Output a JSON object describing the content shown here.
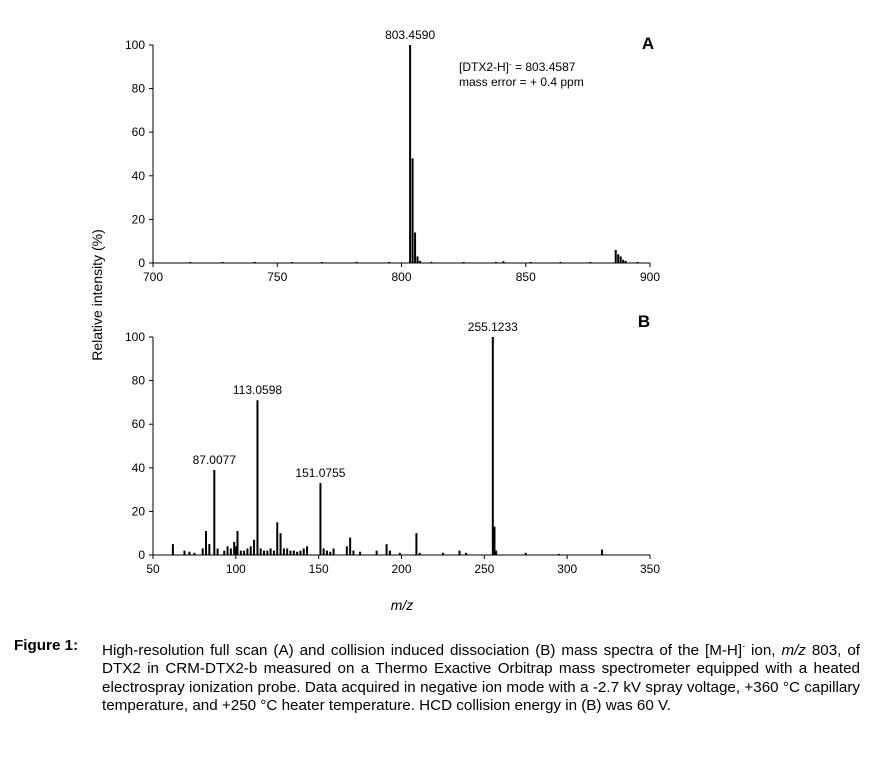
{
  "chart_data": [
    {
      "type": "bar",
      "panel_label": "A",
      "xlim": [
        700,
        900
      ],
      "ylim": [
        0,
        100
      ],
      "xticks": [
        700,
        750,
        800,
        850,
        900
      ],
      "yticks": [
        0,
        20,
        40,
        60,
        80,
        100
      ],
      "grid": false,
      "peaks": [
        {
          "mz": 803.459,
          "intensity": 100
        },
        {
          "mz": 804.46,
          "intensity": 48
        },
        {
          "mz": 805.46,
          "intensity": 14
        },
        {
          "mz": 806.46,
          "intensity": 3
        },
        {
          "mz": 807.5,
          "intensity": 1
        },
        {
          "mz": 886.2,
          "intensity": 6
        },
        {
          "mz": 887.2,
          "intensity": 4
        },
        {
          "mz": 888.2,
          "intensity": 3
        },
        {
          "mz": 889.2,
          "intensity": 1.5
        },
        {
          "mz": 890.2,
          "intensity": 1
        },
        {
          "mz": 715,
          "intensity": 0.4
        },
        {
          "mz": 728,
          "intensity": 0.3
        },
        {
          "mz": 741,
          "intensity": 0.4
        },
        {
          "mz": 756,
          "intensity": 0.3
        },
        {
          "mz": 768,
          "intensity": 0.4
        },
        {
          "mz": 782,
          "intensity": 0.5
        },
        {
          "mz": 795,
          "intensity": 0.4
        },
        {
          "mz": 812,
          "intensity": 0.5
        },
        {
          "mz": 825,
          "intensity": 0.4
        },
        {
          "mz": 838,
          "intensity": 0.5
        },
        {
          "mz": 841,
          "intensity": 0.8
        },
        {
          "mz": 852,
          "intensity": 0.4
        },
        {
          "mz": 864,
          "intensity": 0.5
        },
        {
          "mz": 876,
          "intensity": 0.4
        },
        {
          "mz": 895,
          "intensity": 0.4
        }
      ],
      "peak_labels": [
        {
          "mz": 803.459,
          "intensity": 100,
          "text": "803.4590"
        }
      ],
      "annotation": {
        "line1_main": "[DTX2-H]",
        "line1_sup": "-",
        "line1_tail": " = 803.4587",
        "line2": "mass error = + 0.4 ppm"
      }
    },
    {
      "type": "bar",
      "panel_label": "B",
      "xlim": [
        50,
        350
      ],
      "ylim": [
        0,
        100
      ],
      "xticks": [
        50,
        100,
        150,
        200,
        250,
        300,
        350
      ],
      "yticks": [
        0,
        20,
        40,
        60,
        80,
        100
      ],
      "grid": false,
      "peaks": [
        {
          "mz": 62,
          "intensity": 5
        },
        {
          "mz": 69,
          "intensity": 2
        },
        {
          "mz": 72,
          "intensity": 1.5
        },
        {
          "mz": 75,
          "intensity": 1
        },
        {
          "mz": 80,
          "intensity": 3
        },
        {
          "mz": 82,
          "intensity": 11
        },
        {
          "mz": 84,
          "intensity": 5
        },
        {
          "mz": 87.0077,
          "intensity": 39
        },
        {
          "mz": 89,
          "intensity": 3
        },
        {
          "mz": 93,
          "intensity": 2
        },
        {
          "mz": 95,
          "intensity": 4
        },
        {
          "mz": 97,
          "intensity": 3
        },
        {
          "mz": 99,
          "intensity": 6
        },
        {
          "mz": 100,
          "intensity": 4
        },
        {
          "mz": 101,
          "intensity": 11
        },
        {
          "mz": 103,
          "intensity": 2
        },
        {
          "mz": 105,
          "intensity": 2
        },
        {
          "mz": 107,
          "intensity": 3
        },
        {
          "mz": 109,
          "intensity": 4
        },
        {
          "mz": 111,
          "intensity": 7
        },
        {
          "mz": 113.0598,
          "intensity": 71
        },
        {
          "mz": 115,
          "intensity": 3
        },
        {
          "mz": 117,
          "intensity": 2
        },
        {
          "mz": 119,
          "intensity": 2
        },
        {
          "mz": 121,
          "intensity": 3
        },
        {
          "mz": 123,
          "intensity": 2
        },
        {
          "mz": 125,
          "intensity": 15
        },
        {
          "mz": 127,
          "intensity": 10
        },
        {
          "mz": 129,
          "intensity": 3
        },
        {
          "mz": 131,
          "intensity": 3
        },
        {
          "mz": 133,
          "intensity": 2
        },
        {
          "mz": 135,
          "intensity": 2
        },
        {
          "mz": 137,
          "intensity": 1.5
        },
        {
          "mz": 139,
          "intensity": 2
        },
        {
          "mz": 141,
          "intensity": 3
        },
        {
          "mz": 143,
          "intensity": 4
        },
        {
          "mz": 151.0755,
          "intensity": 33
        },
        {
          "mz": 153,
          "intensity": 3
        },
        {
          "mz": 155,
          "intensity": 2
        },
        {
          "mz": 157,
          "intensity": 1.5
        },
        {
          "mz": 159,
          "intensity": 3
        },
        {
          "mz": 167,
          "intensity": 4
        },
        {
          "mz": 169,
          "intensity": 8
        },
        {
          "mz": 171,
          "intensity": 2
        },
        {
          "mz": 175,
          "intensity": 1.5
        },
        {
          "mz": 185,
          "intensity": 2
        },
        {
          "mz": 191,
          "intensity": 5
        },
        {
          "mz": 193,
          "intensity": 2
        },
        {
          "mz": 199,
          "intensity": 1
        },
        {
          "mz": 209,
          "intensity": 10
        },
        {
          "mz": 211,
          "intensity": 1
        },
        {
          "mz": 225,
          "intensity": 1
        },
        {
          "mz": 235,
          "intensity": 2
        },
        {
          "mz": 239,
          "intensity": 1
        },
        {
          "mz": 255.1233,
          "intensity": 100
        },
        {
          "mz": 256.12,
          "intensity": 13
        },
        {
          "mz": 257.12,
          "intensity": 2
        },
        {
          "mz": 275,
          "intensity": 1
        },
        {
          "mz": 295,
          "intensity": 0.5
        },
        {
          "mz": 321,
          "intensity": 2.5
        }
      ],
      "peak_labels": [
        {
          "mz": 87.0077,
          "intensity": 39,
          "text": "87.0077"
        },
        {
          "mz": 113.0598,
          "intensity": 71,
          "text": "113.0598"
        },
        {
          "mz": 151.0755,
          "intensity": 33,
          "text": "151.0755"
        },
        {
          "mz": 255.1233,
          "intensity": 100,
          "text": "255.1233"
        }
      ]
    }
  ],
  "ylabel": "Relative intensity (%)",
  "xlabel": "m/z",
  "caption": {
    "label": "Figure 1:",
    "pre1": "High-resolution full scan (A) and collision induced dissociation (B) mass spectra of the [M-H]",
    "sup": "-",
    "pre2": " ion, ",
    "mz_italic": "m/z",
    "post": " 803, of DTX2 in CRM-DTX2-b measured on a Thermo Exactive Orbitrap mass spectrometer equipped with a heated electrospray ionization probe. Data acquired in negative ion mode with a -2.7 kV spray voltage, +360 °C capillary temperature, and +250 °C heater temperature. HCD collision energy in (B) was 60 V."
  }
}
